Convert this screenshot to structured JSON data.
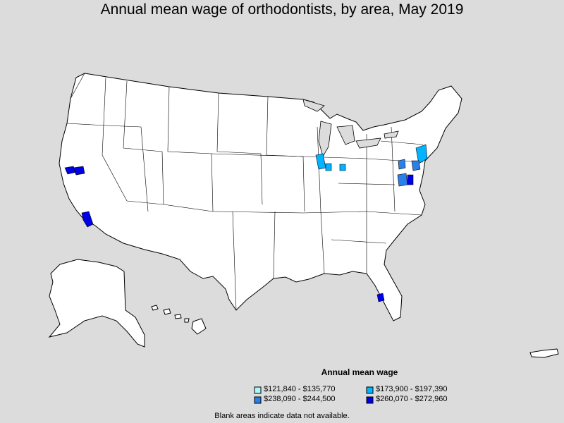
{
  "title": "Annual mean wage of orthodontists, by area, May 2019",
  "legend": {
    "title": "Annual mean wage",
    "items": [
      {
        "label": "$121,840 - $135,770",
        "color": "#aef6f4"
      },
      {
        "label": "$173,900 - $197,390",
        "color": "#00b4ff"
      },
      {
        "label": "$238,090 - $244,500",
        "color": "#2a7fe8"
      },
      {
        "label": "$260,070 - $272,960",
        "color": "#0000e6"
      }
    ]
  },
  "footnote": "Blank areas indicate data not available.",
  "colors": {
    "background": "#dcdcdc",
    "land": "#ffffff",
    "border": "#000000"
  }
}
